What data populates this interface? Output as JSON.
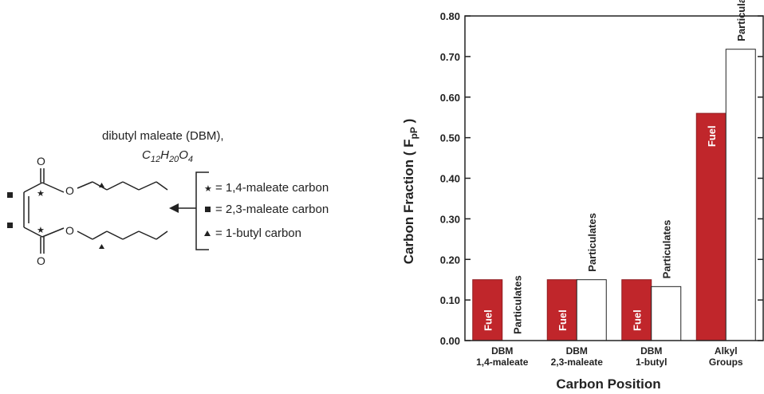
{
  "scheme": {
    "compound_name": "dibutyl maleate (DBM),",
    "formula": {
      "C": "C",
      "c_count": "12",
      "H": "H",
      "h_count": "20",
      "O": "O",
      "o_count": "4"
    },
    "atom_labels": {
      "carbonyl_o_top": "O",
      "ester_o_top": "O",
      "ester_o_bottom": "O",
      "carbonyl_o_bottom": "O"
    },
    "legend": [
      {
        "symbol": "star",
        "glyph": "★",
        "label": "= 1,4-maleate carbon"
      },
      {
        "symbol": "square",
        "glyph": "■",
        "label": "= 2,3-maleate carbon"
      },
      {
        "symbol": "triangle",
        "glyph": "▲",
        "label": "= 1-butyl carbon"
      }
    ],
    "arrow_icon": "left-arrow-icon"
  },
  "chart_data": {
    "type": "bar",
    "title": "",
    "xlabel": "Carbon Position",
    "ylabel_main": "Carbon Fraction ( F",
    "ylabel_sub": "pP",
    "ylabel_end": " )",
    "ylim": [
      0,
      0.8
    ],
    "yticks": [
      "0.00",
      "0.10",
      "0.20",
      "0.30",
      "0.40",
      "0.50",
      "0.60",
      "0.70",
      "0.80"
    ],
    "grid": false,
    "categories": [
      {
        "line1": "DBM",
        "line2": "1,4-maleate"
      },
      {
        "line1": "DBM",
        "line2": "2,3-maleate"
      },
      {
        "line1": "DBM",
        "line2": "1-butyl"
      },
      {
        "line1": "Alkyl",
        "line2": "Groups"
      }
    ],
    "series": [
      {
        "name": "Fuel",
        "color": "#c0262b",
        "values": [
          0.15,
          0.15,
          0.15,
          0.56
        ]
      },
      {
        "name": "Particulates",
        "color": "#ffffff",
        "values": [
          0.0,
          0.15,
          0.133,
          0.718
        ]
      }
    ]
  }
}
